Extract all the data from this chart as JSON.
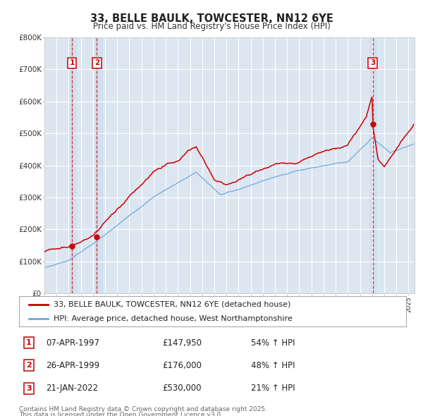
{
  "title": "33, BELLE BAULK, TOWCESTER, NN12 6YE",
  "subtitle": "Price paid vs. HM Land Registry's House Price Index (HPI)",
  "legend_line1": "33, BELLE BAULK, TOWCESTER, NN12 6YE (detached house)",
  "legend_line2": "HPI: Average price, detached house, West Northamptonshire",
  "footer1": "Contains HM Land Registry data © Crown copyright and database right 2025.",
  "footer2": "This data is licensed under the Open Government Licence v3.0.",
  "transactions": [
    {
      "num": 1,
      "date": "07-APR-1997",
      "price": "£147,950",
      "hpi": "54% ↑ HPI",
      "year": 1997.27
    },
    {
      "num": 2,
      "date": "26-APR-1999",
      "price": "£176,000",
      "hpi": "48% ↑ HPI",
      "year": 1999.32
    },
    {
      "num": 3,
      "date": "21-JAN-2022",
      "price": "£530,000",
      "hpi": "21% ↑ HPI",
      "year": 2022.05
    }
  ],
  "sale_prices": [
    147950,
    176000,
    530000
  ],
  "sale_years": [
    1997.27,
    1999.32,
    2022.05
  ],
  "hpi_color": "#6fa8dc",
  "price_color": "#CC0000",
  "plot_bg_color": "#dce6f0",
  "grid_color": "#ffffff",
  "ylim": [
    0,
    800000
  ],
  "xlim_start": 1995.0,
  "xlim_end": 2025.5
}
